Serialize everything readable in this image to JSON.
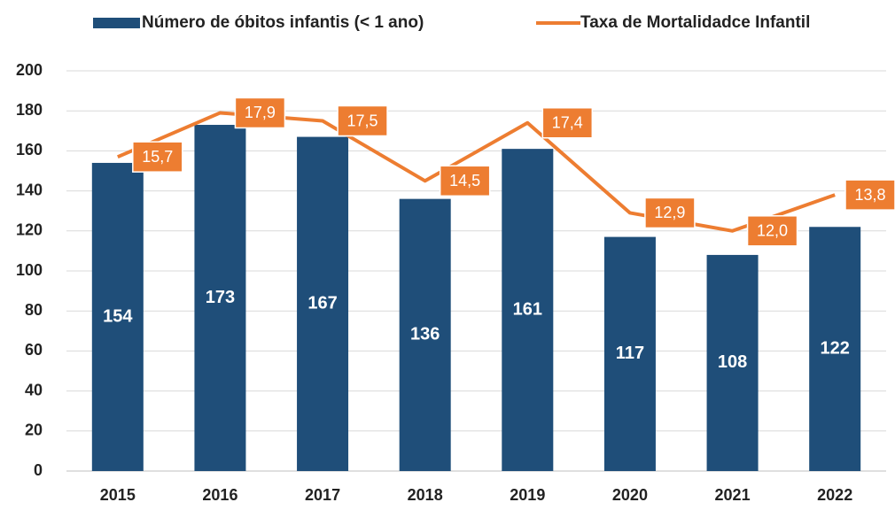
{
  "chart_data": {
    "type": "bar_line",
    "categories": [
      "2015",
      "2016",
      "2017",
      "2018",
      "2019",
      "2020",
      "2021",
      "2022"
    ],
    "series": [
      {
        "name": "Número de óbitos infantis (< 1 ano)",
        "type": "bar",
        "color": "#1f4e79",
        "values": [
          154,
          173,
          167,
          136,
          161,
          117,
          108,
          122
        ]
      },
      {
        "name": "Taxa de Mortalidadce Infantil",
        "type": "line",
        "axis": "y2",
        "color": "#ed7d31",
        "values": [
          15.7,
          17.9,
          17.5,
          14.5,
          17.4,
          12.9,
          12.0,
          13.8
        ],
        "value_labels": [
          "15,7",
          "17,9",
          "17,5",
          "14,5",
          "17,4",
          "12,9",
          "12,0",
          "13,8"
        ]
      }
    ],
    "ylim": [
      0,
      200
    ],
    "yticks": [
      0,
      20,
      40,
      60,
      80,
      100,
      120,
      140,
      160,
      180,
      200
    ],
    "y2lim": [
      0,
      20
    ],
    "grid": true,
    "legend": "top"
  }
}
